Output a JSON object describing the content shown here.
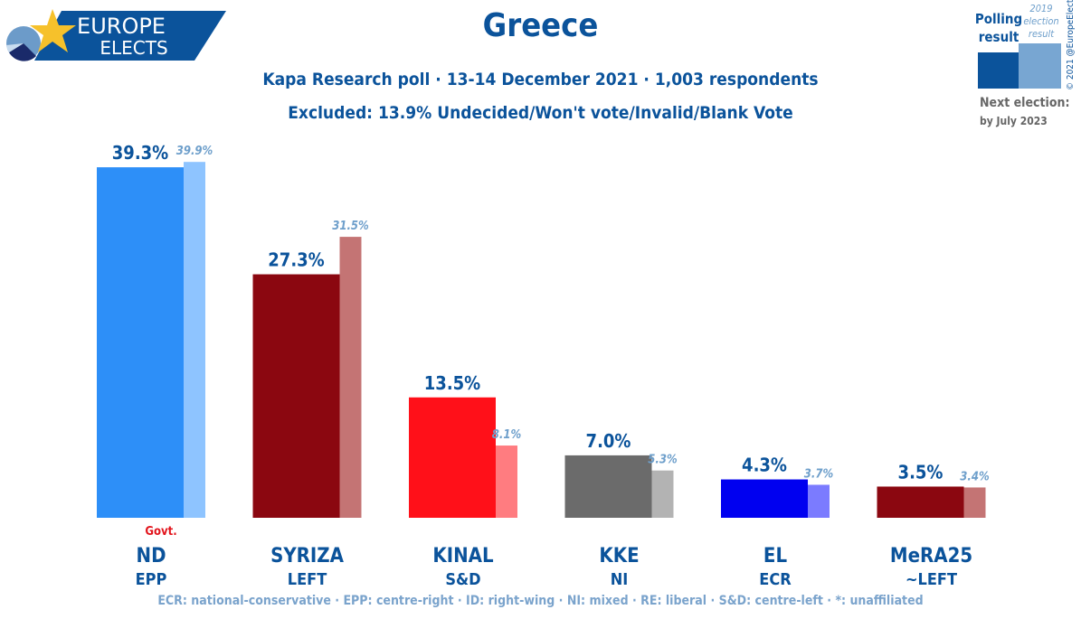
{
  "logo": {
    "line1": "EUROPE",
    "line2": "ELECTS"
  },
  "title": "Greece",
  "subtitle": "Kapa Research poll · 13-14 December 2021 · 1,003 respondents",
  "excluded": "Excluded: 13.9% Undecided/Won't vote/Invalid/Blank Vote",
  "legend": {
    "poll": [
      "Polling",
      "result"
    ],
    "prev": [
      "2019",
      "election",
      "result"
    ],
    "copyright": "© 2021 @EuropeElects",
    "next_label": "Next election:",
    "next_value": "by July 2023",
    "poll_color": "#0b539b",
    "prev_color": "#78a6d2"
  },
  "govt_label": "Govt.",
  "footer": "ECR: national-conservative · EPP: centre-right · ID: right-wing · NI: mixed · RE: liberal · S&D: centre-left · *: unaffiliated",
  "chart_data": {
    "type": "bar",
    "categories": [
      "ND",
      "SYRIZA",
      "KINAL",
      "KKE",
      "EL",
      "MeRA25"
    ],
    "groups": [
      "EPP",
      "LEFT",
      "S&D",
      "NI",
      "ECR",
      "~LEFT"
    ],
    "series": [
      {
        "name": "Polling result",
        "values": [
          39.3,
          27.3,
          13.5,
          7.0,
          4.3,
          3.5
        ],
        "labels": [
          "39.3%",
          "27.3%",
          "13.5%",
          "7.0%",
          "4.3%",
          "3.5%"
        ],
        "colors": [
          "#2d8ff8",
          "#8b0710",
          "#ff1019",
          "#6b6b6b",
          "#0000f0",
          "#8b0710"
        ]
      },
      {
        "name": "2019 election result",
        "values": [
          39.9,
          31.5,
          8.1,
          5.3,
          3.7,
          3.4
        ],
        "labels": [
          "39.9%",
          "31.5%",
          "8.1%",
          "5.3%",
          "3.7%",
          "3.4%"
        ],
        "colors": [
          "#8ec4ff",
          "#c47474",
          "#ff7c80",
          "#b3b3b3",
          "#7b7bff",
          "#c47474"
        ]
      }
    ],
    "government": [
      "ND"
    ],
    "ylim": [
      0,
      40
    ]
  }
}
